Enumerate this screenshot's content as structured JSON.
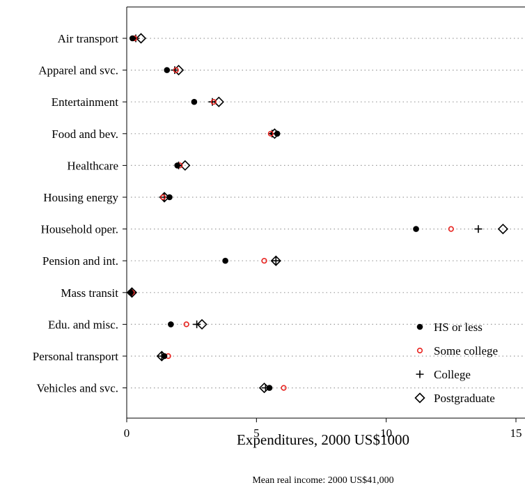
{
  "chart_data": {
    "type": "scatter",
    "orientation": "horizontal-dot-plot",
    "categories": [
      "Air transport",
      "Apparel and svc.",
      "Entertainment",
      "Food and bev.",
      "Healthcare",
      "Housing energy",
      "Household oper.",
      "Pension and int.",
      "Mass transit",
      "Edu. and misc.",
      "Personal transport",
      "Vehicles and svc."
    ],
    "series": [
      {
        "name": "HS or less",
        "marker": "dot",
        "color": "#000000",
        "values": [
          0.22,
          1.55,
          2.6,
          5.8,
          1.95,
          1.65,
          11.15,
          3.8,
          0.15,
          1.7,
          1.45,
          5.5
        ]
      },
      {
        "name": "Some college",
        "marker": "circle",
        "color": "#e8231f",
        "values": [
          0.3,
          1.9,
          3.35,
          5.55,
          2.05,
          1.4,
          12.5,
          5.3,
          0.2,
          2.3,
          1.6,
          6.05
        ]
      },
      {
        "name": "College",
        "marker": "plus",
        "color": "#000000",
        "values": [
          0.35,
          1.85,
          3.3,
          5.6,
          2.0,
          1.45,
          13.55,
          5.75,
          0.2,
          2.7,
          1.35,
          5.35
        ]
      },
      {
        "name": "Postgraduate",
        "marker": "diamond",
        "color": "#000000",
        "values": [
          0.55,
          2.0,
          3.55,
          5.7,
          2.25,
          1.45,
          14.5,
          5.75,
          0.2,
          2.9,
          1.35,
          5.3
        ]
      }
    ],
    "xlabel": "Expenditures, 2000 US$1000",
    "ylabel": "",
    "xlim": [
      0,
      15
    ],
    "xticks": [
      0,
      5,
      10,
      15
    ],
    "grid": "dotted horizontal",
    "legend_position": "bottom-right",
    "note": "Mean real income: 2000 US$41,000"
  }
}
